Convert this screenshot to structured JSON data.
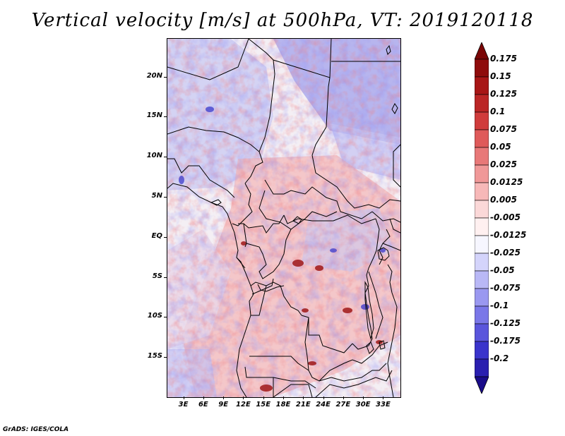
{
  "title": "Vertical velocity [m/s] at 500hPa, VT: 2019120118",
  "credit": "GrADS: IGES/COLA",
  "map": {
    "region": "Central Africa",
    "lat_ticks": [
      {
        "label": "20N",
        "lat": 20
      },
      {
        "label": "15N",
        "lat": 15
      },
      {
        "label": "10N",
        "lat": 10
      },
      {
        "label": "5N",
        "lat": 5
      },
      {
        "label": "EQ",
        "lat": 0
      },
      {
        "label": "5S",
        "lat": -5
      },
      {
        "label": "10S",
        "lat": -10
      },
      {
        "label": "15S",
        "lat": -15
      }
    ],
    "lon_ticks": [
      {
        "label": "3E",
        "lon": 3
      },
      {
        "label": "6E",
        "lon": 6
      },
      {
        "label": "9E",
        "lon": 9
      },
      {
        "label": "12E",
        "lon": 12
      },
      {
        "label": "15E",
        "lon": 15
      },
      {
        "label": "18E",
        "lon": 18
      },
      {
        "label": "21E",
        "lon": 21
      },
      {
        "label": "24E",
        "lon": 24
      },
      {
        "label": "27E",
        "lon": 27
      },
      {
        "label": "30E",
        "lon": 30
      },
      {
        "label": "33E",
        "lon": 33
      }
    ],
    "lon_range": [
      0.5,
      35.5
    ],
    "lat_range": [
      -19.9,
      24.8
    ]
  },
  "colorbar": {
    "colors": [
      "#1a0c8a",
      "#2a1fb0",
      "#3a34cc",
      "#5a55dc",
      "#7a77e8",
      "#9a98f0",
      "#b9b8f6",
      "#d4d4fb",
      "#f6f6ff",
      "#fff0f0",
      "#fbd8d8",
      "#f7b8b8",
      "#f09898",
      "#e87878",
      "#df5a5a",
      "#d03c3c",
      "#bb2626",
      "#a81616",
      "#8f0c0c",
      "#7a0606"
    ],
    "labels": [
      "0.175",
      "0.15",
      "0.125",
      "0.1",
      "0.075",
      "0.05",
      "0.025",
      "0.0125",
      "0.005",
      "-0.005",
      "-0.0125",
      "-0.025",
      "-0.05",
      "-0.075",
      "-0.1",
      "-0.125",
      "-0.175",
      "-0.2"
    ]
  }
}
